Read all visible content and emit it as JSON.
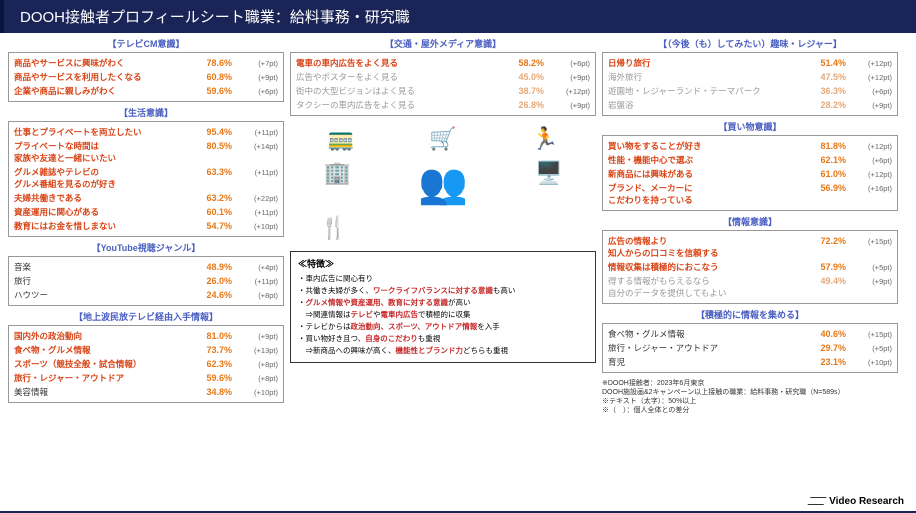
{
  "header": "DOOH接触者プロフィールシート職業：給料事務・研究職",
  "sections": {
    "tvcm": {
      "title": "【テレビCM意識】",
      "rows": [
        {
          "label": "商品やサービスに興味がわく",
          "pct": "78.6%",
          "pt": "(+7pt)",
          "hl": true
        },
        {
          "label": "商品やサービスを利用したくなる",
          "pct": "60.8%",
          "pt": "(+9pt)",
          "hl": true
        },
        {
          "label": "企業や商品に親しみがわく",
          "pct": "59.6%",
          "pt": "(+6pt)",
          "hl": true
        }
      ]
    },
    "life": {
      "title": "【生活意識】",
      "rows": [
        {
          "label": "仕事とプライベートを両立したい",
          "pct": "95.4%",
          "pt": "(+11pt)",
          "hl": true
        },
        {
          "label": "プライベートな時間は\n家族や友達と一緒にいたい",
          "pct": "80.5%",
          "pt": "(+14pt)",
          "hl": true
        },
        {
          "label": "グルメ雑誌やテレビの\nグルメ番組を見るのが好き",
          "pct": "63.3%",
          "pt": "(+11pt)",
          "hl": true
        },
        {
          "label": "夫婦共働きである",
          "pct": "63.2%",
          "pt": "(+22pt)",
          "hl": true
        },
        {
          "label": "資産運用に関心がある",
          "pct": "60.1%",
          "pt": "(+11pt)",
          "hl": true
        },
        {
          "label": "教育にはお金を惜しまない",
          "pct": "54.7%",
          "pt": "(+10pt)",
          "hl": true
        }
      ]
    },
    "youtube": {
      "title": "【YouTube視聴ジャンル】",
      "rows": [
        {
          "label": "音楽",
          "pct": "48.9%",
          "pt": "(+4pt)"
        },
        {
          "label": "旅行",
          "pct": "26.0%",
          "pt": "(+11pt)"
        },
        {
          "label": "ハウツー",
          "pct": "24.6%",
          "pt": "(+8pt)"
        }
      ]
    },
    "tvinfo": {
      "title": "【地上波民放テレビ経由入手情報】",
      "rows": [
        {
          "label": "国内外の政治動向",
          "pct": "81.0%",
          "pt": "(+9pt)",
          "hl": true
        },
        {
          "label": "食べ物・グルメ情報",
          "pct": "73.7%",
          "pt": "(+13pt)",
          "hl": true
        },
        {
          "label": "スポーツ（競技全般・試合情報）",
          "pct": "62.3%",
          "pt": "(+8pt)",
          "hl": true
        },
        {
          "label": "旅行・レジャー・アウトドア",
          "pct": "59.6%",
          "pt": "(+8pt)",
          "hl": true
        },
        {
          "label": "美容情報",
          "pct": "34.8%",
          "pt": "(+10pt)"
        }
      ]
    },
    "transport": {
      "title": "【交通・屋外メディア意識】",
      "rows": [
        {
          "label": "電車の車内広告をよく見る",
          "pct": "58.2%",
          "pt": "(+6pt)",
          "hl": true
        },
        {
          "label": "広告やポスターをよく見る",
          "pct": "45.0%",
          "pt": "(+9pt)",
          "faded": true
        },
        {
          "label": "街中の大型ビジョンはよく見る",
          "pct": "38.7%",
          "pt": "(+12pt)",
          "faded": true
        },
        {
          "label": "タクシーの車内広告をよく見る",
          "pct": "26.8%",
          "pt": "(+9pt)",
          "faded": true
        }
      ]
    },
    "hobby": {
      "title": "【（今後（も）してみたい）趣味・レジャー】",
      "rows": [
        {
          "label": "日帰り旅行",
          "pct": "51.4%",
          "pt": "(+12pt)",
          "hl": true
        },
        {
          "label": "海外旅行",
          "pct": "47.5%",
          "pt": "(+12pt)",
          "faded": true
        },
        {
          "label": "遊園地・レジャーランド・テーマパーク",
          "pct": "36.3%",
          "pt": "(+6pt)",
          "faded": true
        },
        {
          "label": "岩盤浴",
          "pct": "28.2%",
          "pt": "(+9pt)",
          "faded": true
        }
      ]
    },
    "shopping": {
      "title": "【買い物意識】",
      "rows": [
        {
          "label": "買い物をすることが好き",
          "pct": "81.8%",
          "pt": "(+12pt)",
          "hl": true
        },
        {
          "label": "性能・機能中心で選ぶ",
          "pct": "62.1%",
          "pt": "(+6pt)",
          "hl": true
        },
        {
          "label": "新商品には興味がある",
          "pct": "61.0%",
          "pt": "(+12pt)",
          "hl": true
        },
        {
          "label": "ブランド、メーカーに\nこだわりを持っている",
          "pct": "56.9%",
          "pt": "(+16pt)",
          "hl": true
        }
      ]
    },
    "info": {
      "title": "【情報意識】",
      "rows": [
        {
          "label": "広告の情報より\n知人からの口コミを信頼する",
          "pct": "72.2%",
          "pt": "(+15pt)",
          "hl": true
        },
        {
          "label": "情報収集は積極的におこなう",
          "pct": "57.9%",
          "pt": "(+5pt)",
          "hl": true
        },
        {
          "label": "得する情報がもらえるなら\n自分のデータを提供してもよい",
          "pct": "49.4%",
          "pt": "(+9pt)",
          "faded": true
        }
      ]
    },
    "active": {
      "title": "【積極的に情報を集める】",
      "rows": [
        {
          "label": "食べ物・グルメ情報",
          "pct": "40.6%",
          "pt": "(+15pt)"
        },
        {
          "label": "旅行・レジャー・アウトドア",
          "pct": "29.7%",
          "pt": "(+5pt)"
        },
        {
          "label": "育児",
          "pct": "23.1%",
          "pt": "(+10pt)"
        }
      ]
    }
  },
  "feature": {
    "title": "≪特徴≫",
    "lines": [
      "・車内広告に関心有り",
      "・共働き夫婦が多く、<r>ワークライフバランスに対する意識</r>も高い",
      "・<r>グルメ情報や資産運用、教育に対する意識</r>が高い\n　⇒関連情報は<r>テレビ</r>や<r>電車内広告</r>で積極的に収集",
      "・テレビからは<r>政治動向、スポーツ、アウトドア情報</r>を入手",
      "・買い物好き且つ、<r>自身のこだわり</r>も重視\n　⇒新商品への興味が高く、<r>機能性とブランド力</r>どちらも重視"
    ]
  },
  "footnotes": [
    "※DOOH接触者：2023年6月東京",
    "DOOH施設画&2キャンペーン以上接触の職業：給料事務・研究職（N=589s）",
    "※テキスト（太字）：50%以上",
    "※（　）：個人全体との差分"
  ],
  "logo": "Video Research"
}
